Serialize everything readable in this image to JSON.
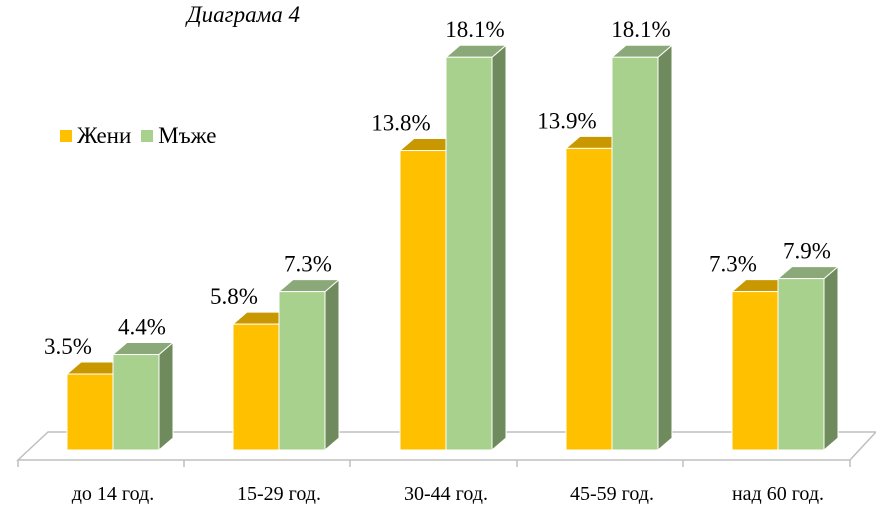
{
  "chart_data": {
    "type": "bar",
    "title": "Диаграма 4",
    "categories": [
      "до 14 год.",
      "15-29 год.",
      "30-44 год.",
      "45-59 год.",
      "над 60 год."
    ],
    "series": [
      {
        "name": "Жени",
        "values": [
          3.5,
          5.8,
          13.8,
          13.9,
          7.3
        ],
        "labels": [
          "3.5%",
          "5.8%",
          "13.8%",
          "13.9%",
          "7.3%"
        ]
      },
      {
        "name": "Мъже",
        "values": [
          4.4,
          7.3,
          18.1,
          18.1,
          7.9
        ],
        "labels": [
          "4.4%",
          "7.3%",
          "18.1%",
          "18.1%",
          "7.9%"
        ]
      }
    ],
    "ylim": [
      0,
      20
    ],
    "grid": false,
    "legend_position": "left",
    "style": "3d-clustered-column"
  },
  "colors": {
    "women_front": "#FFC000",
    "women_top": "#C99700",
    "women_side": "#B38600",
    "men_front": "#A9D18E",
    "men_top": "#8BA878",
    "men_side": "#6F8A5C"
  }
}
